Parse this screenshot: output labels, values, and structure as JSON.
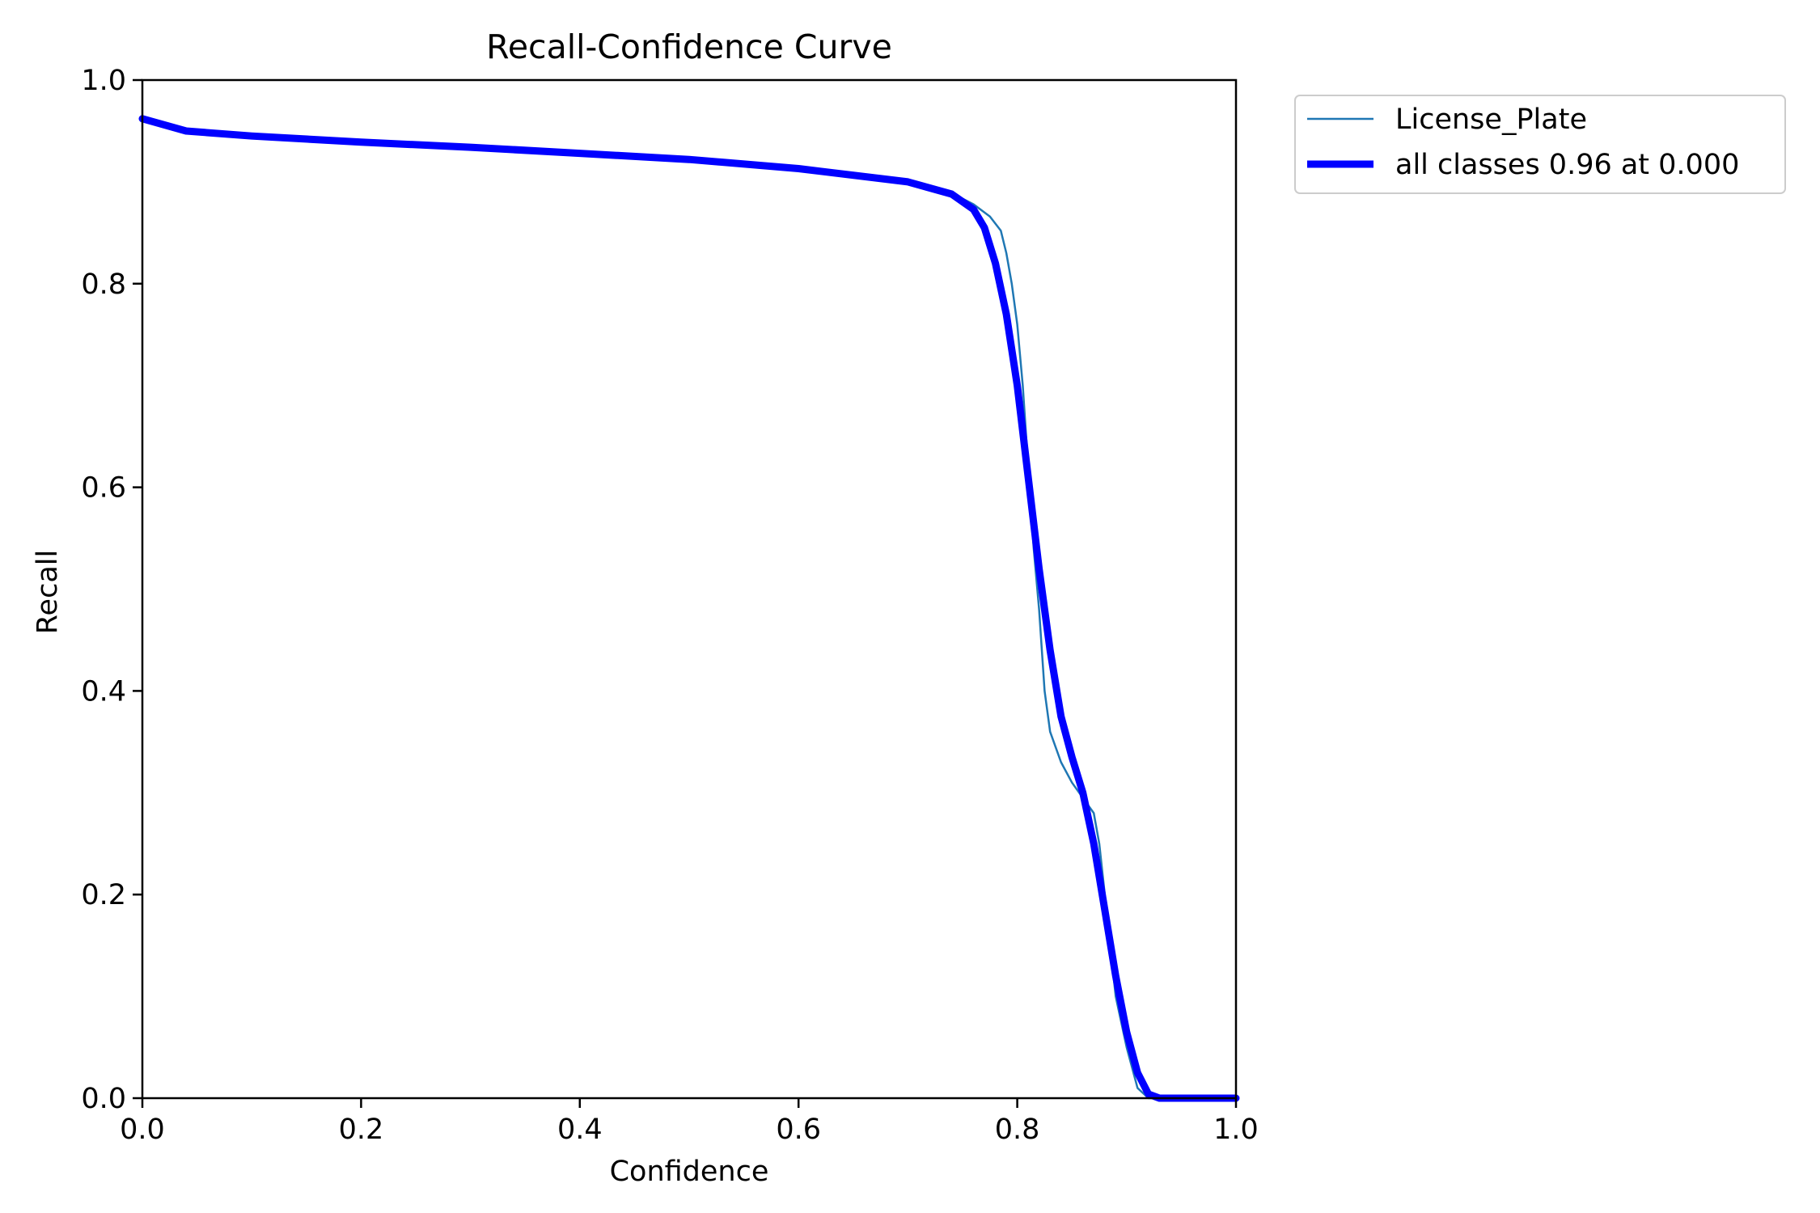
{
  "chart_data": {
    "type": "line",
    "title": "Recall-Confidence Curve",
    "xlabel": "Confidence",
    "ylabel": "Recall",
    "xlim": [
      0,
      1
    ],
    "ylim": [
      0,
      1
    ],
    "x_ticks": [
      "0.0",
      "0.2",
      "0.4",
      "0.6",
      "0.8",
      "1.0"
    ],
    "y_ticks": [
      "0.0",
      "0.2",
      "0.4",
      "0.6",
      "0.8",
      "1.0"
    ],
    "grid": false,
    "legend_position": "outside-top-right",
    "series": [
      {
        "name": "License_Plate",
        "color": "#1f77b4",
        "points": [
          [
            0.0,
            0.962
          ],
          [
            0.04,
            0.95
          ],
          [
            0.1,
            0.945
          ],
          [
            0.2,
            0.939
          ],
          [
            0.3,
            0.934
          ],
          [
            0.4,
            0.928
          ],
          [
            0.5,
            0.922
          ],
          [
            0.6,
            0.913
          ],
          [
            0.7,
            0.9
          ],
          [
            0.74,
            0.889
          ],
          [
            0.76,
            0.878
          ],
          [
            0.775,
            0.866
          ],
          [
            0.785,
            0.852
          ],
          [
            0.79,
            0.83
          ],
          [
            0.795,
            0.8
          ],
          [
            0.8,
            0.76
          ],
          [
            0.805,
            0.7
          ],
          [
            0.81,
            0.62
          ],
          [
            0.815,
            0.54
          ],
          [
            0.82,
            0.48
          ],
          [
            0.825,
            0.4
          ],
          [
            0.83,
            0.36
          ],
          [
            0.84,
            0.33
          ],
          [
            0.85,
            0.31
          ],
          [
            0.86,
            0.295
          ],
          [
            0.87,
            0.28
          ],
          [
            0.875,
            0.25
          ],
          [
            0.88,
            0.2
          ],
          [
            0.885,
            0.15
          ],
          [
            0.89,
            0.1
          ],
          [
            0.9,
            0.05
          ],
          [
            0.91,
            0.01
          ],
          [
            0.92,
            0.0
          ],
          [
            1.0,
            0.0
          ]
        ]
      },
      {
        "name": "all classes 0.96 at 0.000",
        "color": "#0000ff",
        "points": [
          [
            0.0,
            0.962
          ],
          [
            0.04,
            0.95
          ],
          [
            0.1,
            0.945
          ],
          [
            0.2,
            0.939
          ],
          [
            0.3,
            0.934
          ],
          [
            0.4,
            0.928
          ],
          [
            0.5,
            0.922
          ],
          [
            0.6,
            0.913
          ],
          [
            0.7,
            0.9
          ],
          [
            0.74,
            0.888
          ],
          [
            0.76,
            0.873
          ],
          [
            0.77,
            0.855
          ],
          [
            0.78,
            0.82
          ],
          [
            0.79,
            0.77
          ],
          [
            0.8,
            0.7
          ],
          [
            0.81,
            0.61
          ],
          [
            0.82,
            0.52
          ],
          [
            0.83,
            0.44
          ],
          [
            0.84,
            0.375
          ],
          [
            0.85,
            0.335
          ],
          [
            0.86,
            0.3
          ],
          [
            0.87,
            0.25
          ],
          [
            0.88,
            0.185
          ],
          [
            0.89,
            0.12
          ],
          [
            0.9,
            0.065
          ],
          [
            0.91,
            0.025
          ],
          [
            0.92,
            0.004
          ],
          [
            0.93,
            0.0
          ],
          [
            1.0,
            0.0
          ]
        ]
      }
    ]
  }
}
